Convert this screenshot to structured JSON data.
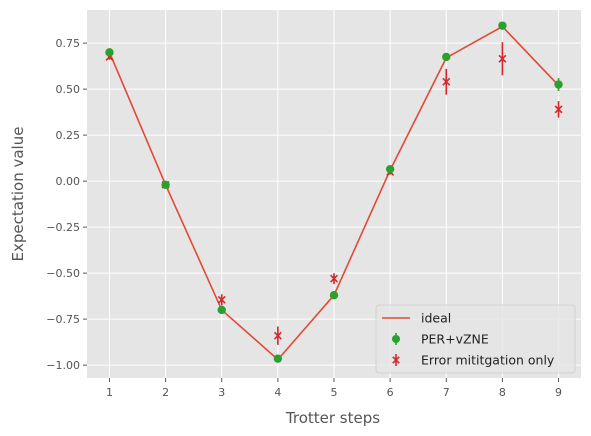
{
  "chart_data": {
    "type": "line",
    "title": "",
    "xlabel": "Trotter steps",
    "ylabel": "Expectation value",
    "x": [
      1,
      2,
      3,
      4,
      5,
      6,
      7,
      8,
      9
    ],
    "xticks": [
      1,
      2,
      3,
      4,
      5,
      6,
      7,
      8,
      9
    ],
    "yticks": [
      -1.0,
      -0.75,
      -0.5,
      -0.25,
      0.0,
      0.25,
      0.5,
      0.75
    ],
    "ytick_labels": [
      "−1.00",
      "−0.75",
      "−0.50",
      "−0.25",
      "0.00",
      "0.25",
      "0.50",
      "0.75"
    ],
    "xlim": [
      0.6,
      9.4
    ],
    "ylim": [
      -1.07,
      0.93
    ],
    "grid": true,
    "legend_position": "bottom-right",
    "series": [
      {
        "name": "ideal",
        "kind": "line",
        "color": "#e24a33",
        "values": [
          0.7,
          -0.02,
          -0.7,
          -0.97,
          -0.62,
          0.06,
          0.67,
          0.84,
          0.52
        ]
      },
      {
        "name": "PER+vZNE",
        "kind": "errorbar-circle",
        "color": "#2ca02c",
        "values": [
          0.7,
          -0.02,
          -0.7,
          -0.965,
          -0.62,
          0.065,
          0.675,
          0.845,
          0.525
        ],
        "errors": [
          0.015,
          0.015,
          0.015,
          0.02,
          0.015,
          0.015,
          0.015,
          0.015,
          0.035
        ]
      },
      {
        "name": "Error mititgation only",
        "kind": "errorbar-x",
        "color": "#d62728",
        "values": [
          0.675,
          -0.02,
          -0.645,
          -0.84,
          -0.53,
          0.05,
          0.54,
          0.665,
          0.39
        ],
        "errors": [
          0.015,
          0.015,
          0.03,
          0.05,
          0.03,
          0.015,
          0.07,
          0.09,
          0.045
        ]
      }
    ]
  }
}
